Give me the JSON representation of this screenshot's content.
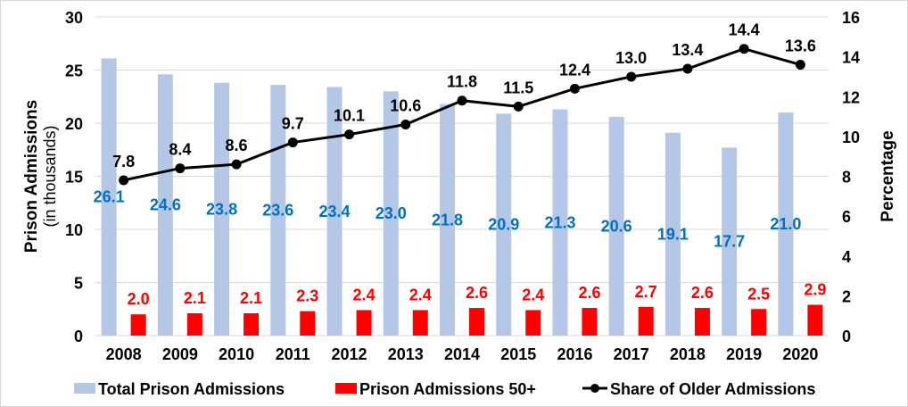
{
  "chart_data": {
    "type": "bar",
    "categories": [
      "2008",
      "2009",
      "2010",
      "2011",
      "2012",
      "2013",
      "2014",
      "2015",
      "2016",
      "2017",
      "2018",
      "2019",
      "2020"
    ],
    "series": [
      {
        "name": "Total Prison Admissions",
        "axis": "left",
        "kind": "bar",
        "color": "#b4c7e7",
        "label_color": "#0070c0",
        "values": [
          26.1,
          24.6,
          23.8,
          23.6,
          23.4,
          23.0,
          21.8,
          20.9,
          21.3,
          20.6,
          19.1,
          17.7,
          21.0
        ]
      },
      {
        "name": "Prison Admissions 50+",
        "axis": "left",
        "kind": "bar",
        "color": "#ff0000",
        "label_color": "#ff0000",
        "values": [
          2.0,
          2.1,
          2.1,
          2.3,
          2.4,
          2.4,
          2.6,
          2.4,
          2.6,
          2.7,
          2.6,
          2.5,
          2.9
        ]
      },
      {
        "name": "Share of Older Admissions",
        "axis": "right",
        "kind": "line",
        "color": "#000000",
        "label_color": "#000000",
        "values": [
          7.8,
          8.4,
          8.6,
          9.7,
          10.1,
          10.6,
          11.8,
          11.5,
          12.4,
          13.0,
          13.4,
          14.4,
          13.6
        ]
      }
    ],
    "ylabel": "Prison Admissions",
    "ylabel_sub": "(in thousands)",
    "y2label": "Percentage",
    "ylim": [
      0,
      30
    ],
    "yticks": [
      0,
      5,
      10,
      15,
      20,
      25,
      30
    ],
    "y2lim": [
      0,
      16
    ],
    "y2ticks": [
      0,
      2,
      4,
      6,
      8,
      10,
      12,
      14,
      16
    ],
    "grid": true,
    "legend": "bottom"
  }
}
